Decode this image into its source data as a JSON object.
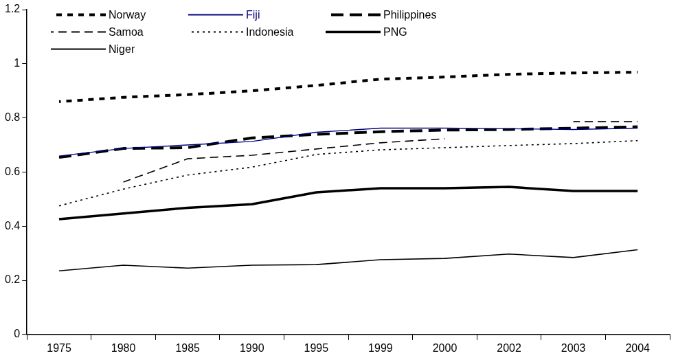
{
  "chart_data": {
    "type": "line",
    "categories": [
      "1975",
      "1980",
      "1985",
      "1990",
      "1995",
      "1999",
      "2000",
      "2002",
      "2003",
      "2004"
    ],
    "ylim": [
      0,
      1.2
    ],
    "yticks": [
      0,
      0.2,
      0.4,
      0.6,
      0.8,
      1,
      1.2
    ],
    "grid": false,
    "legend": "top left",
    "marker": "none",
    "series": [
      {
        "name": "Norway",
        "color": "#000000",
        "line_style": "dotted",
        "values": [
          0.86,
          0.876,
          0.886,
          0.9,
          0.92,
          0.943,
          0.951,
          0.961,
          0.966,
          0.969
        ]
      },
      {
        "name": "Fiji",
        "color": "#000080",
        "line_style": "solid",
        "values": [
          0.659,
          0.687,
          0.7,
          0.713,
          0.747,
          0.762,
          0.762,
          0.76,
          0.757,
          0.762
        ]
      },
      {
        "name": "Philippines",
        "color": "#000000",
        "line_style": "dashed",
        "values": [
          0.654,
          0.687,
          0.69,
          0.726,
          0.739,
          0.749,
          0.755,
          0.757,
          0.762,
          0.767
        ]
      },
      {
        "name": "Samoa",
        "color": "#000000",
        "line_style": "dashed",
        "values": [
          null,
          0.563,
          0.649,
          0.662,
          0.685,
          0.708,
          0.723,
          null,
          0.786,
          0.786
        ]
      },
      {
        "name": "Indonesia",
        "color": "#000000",
        "line_style": "dotted",
        "values": [
          0.475,
          0.537,
          0.589,
          0.618,
          0.665,
          0.682,
          0.69,
          0.698,
          0.705,
          0.716
        ]
      },
      {
        "name": "PNG",
        "color": "#000000",
        "line_style": "solid",
        "values": [
          0.426,
          0.447,
          0.468,
          0.481,
          0.525,
          0.54,
          0.54,
          0.545,
          0.53,
          0.53
        ]
      },
      {
        "name": "Niger",
        "color": "#000000",
        "line_style": "solid",
        "values": [
          0.235,
          0.256,
          0.245,
          0.256,
          0.258,
          0.276,
          0.281,
          0.297,
          0.284,
          0.313
        ]
      }
    ]
  }
}
